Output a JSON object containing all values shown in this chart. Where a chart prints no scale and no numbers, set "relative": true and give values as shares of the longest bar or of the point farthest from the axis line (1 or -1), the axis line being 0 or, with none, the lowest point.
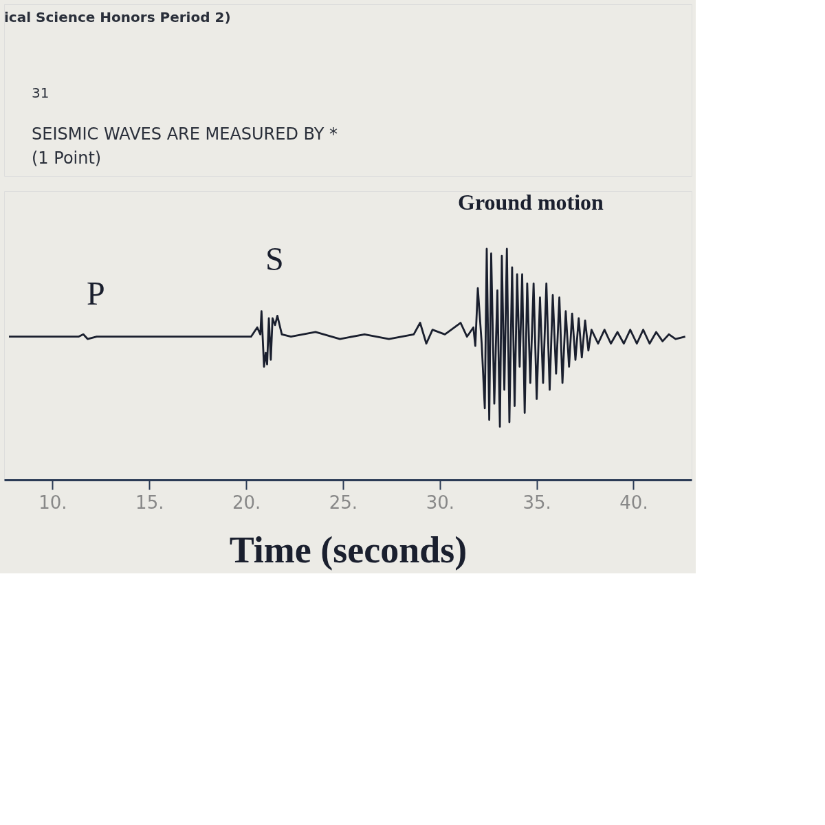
{
  "chart_data": {
    "type": "line",
    "title": "SEISMIC WAVES ARE MEASURED BY *",
    "subtitle": "(1 Point)",
    "xlabel": "Time (seconds)",
    "relative": true,
    "xlim": [
      7.5,
      43
    ],
    "xticks": [
      {
        "value": 10,
        "label": "10."
      },
      {
        "value": 15,
        "label": "15."
      },
      {
        "value": 20,
        "label": "20."
      },
      {
        "value": 25,
        "label": "25."
      },
      {
        "value": 30,
        "label": "30."
      },
      {
        "value": 35,
        "label": "35."
      },
      {
        "value": 40,
        "label": "40."
      }
    ],
    "grid": false,
    "line_style": "solid",
    "marker": "none",
    "annotations": [
      "ical Science Honors Period 2)",
      "31",
      "P",
      "S",
      "Ground motion"
    ],
    "series": [
      {
        "color": "#1a1f2e",
        "x": [
          7.75,
          11.34,
          11.59,
          11.81,
          12.28,
          12.75,
          19.78,
          20.25,
          20.57,
          20.73,
          20.79,
          20.92,
          21.01,
          21.08,
          21.17,
          21.27,
          21.36,
          21.49,
          21.61,
          21.84,
          22.31,
          23.58,
          24.84,
          26.11,
          27.37,
          28.65,
          28.98,
          29.3,
          29.62,
          30.26,
          31.07,
          31.4,
          31.73,
          31.83,
          31.96,
          32.16,
          32.32,
          32.42,
          32.55,
          32.65,
          32.81,
          32.97,
          33.1,
          33.2,
          33.33,
          33.46,
          33.59,
          33.73,
          33.86,
          33.99,
          34.12,
          34.25,
          34.38,
          34.51,
          34.67,
          34.84,
          35.0,
          35.17,
          35.33,
          35.5,
          35.67,
          35.83,
          36.0,
          36.17,
          36.33,
          36.5,
          36.67,
          36.83,
          37.0,
          37.17,
          37.33,
          37.5,
          37.67,
          37.83,
          38.17,
          38.5,
          38.83,
          39.17,
          39.5,
          39.83,
          40.17,
          40.5,
          40.83,
          41.17,
          41.5,
          41.83,
          42.17,
          42.67
        ],
        "values": [
          0.62,
          0.62,
          0.63,
          0.61,
          0.62,
          0.62,
          0.62,
          0.62,
          0.66,
          0.63,
          0.73,
          0.49,
          0.55,
          0.5,
          0.7,
          0.52,
          0.7,
          0.67,
          0.71,
          0.63,
          0.62,
          0.64,
          0.61,
          0.63,
          0.61,
          0.63,
          0.68,
          0.59,
          0.65,
          0.63,
          0.68,
          0.62,
          0.66,
          0.58,
          0.83,
          0.59,
          0.31,
          1,
          0.26,
          0.98,
          0.33,
          0.82,
          0.23,
          0.97,
          0.39,
          1,
          0.25,
          0.92,
          0.32,
          0.89,
          0.49,
          0.89,
          0.29,
          0.85,
          0.42,
          0.85,
          0.35,
          0.79,
          0.42,
          0.85,
          0.39,
          0.8,
          0.46,
          0.79,
          0.42,
          0.73,
          0.49,
          0.72,
          0.52,
          0.7,
          0.53,
          0.69,
          0.56,
          0.65,
          0.59,
          0.65,
          0.59,
          0.64,
          0.59,
          0.65,
          0.59,
          0.65,
          0.59,
          0.64,
          0.6,
          0.63,
          0.61,
          0.62
        ]
      }
    ]
  }
}
